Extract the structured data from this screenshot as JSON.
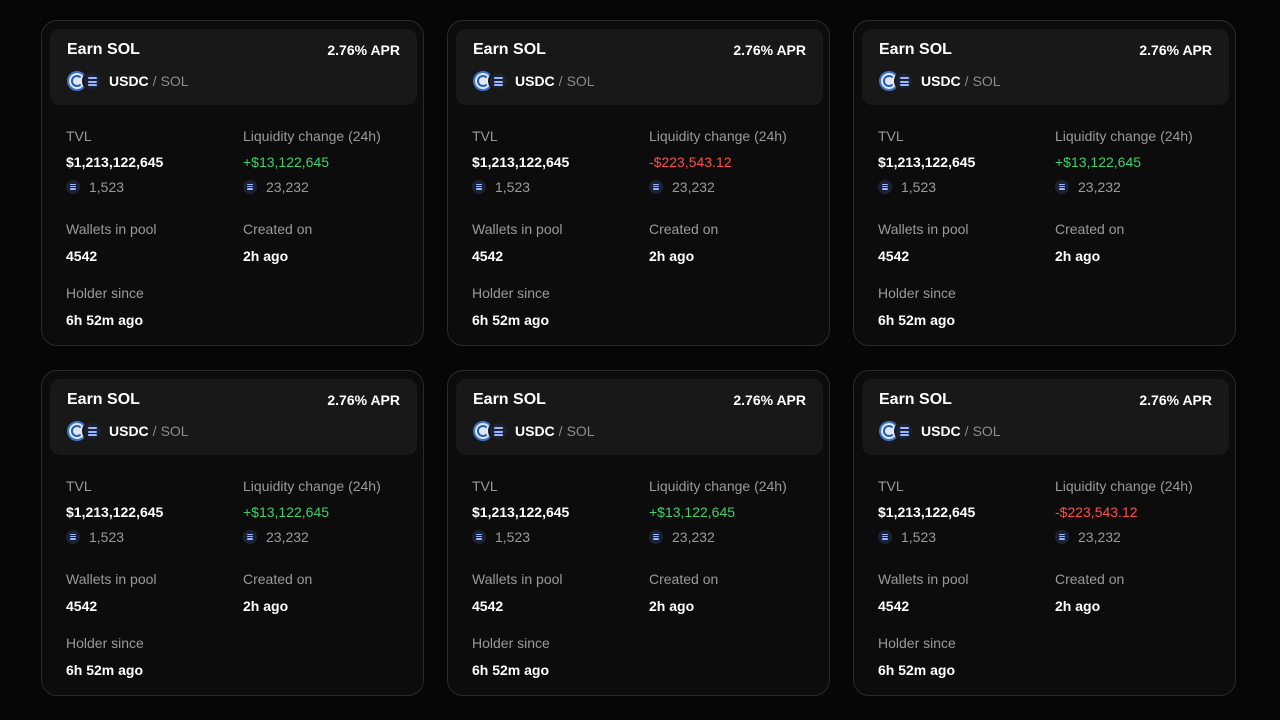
{
  "cards": [
    {
      "title": "Earn SOL",
      "apr": "2.76% APR",
      "pair_base": "USDC",
      "pair_sep": "/",
      "pair_quote": "SOL",
      "tvl_label": "TVL",
      "tvl_value": "$1,213,122,645",
      "tvl_sol": "1,523",
      "liq_label": "Liquidity change (24h)",
      "liq_value": "+$13,122,645",
      "liq_direction": "positive",
      "liq_sol": "23,232",
      "wallets_label": "Wallets in pool",
      "wallets_value": "4542",
      "created_label": "Created on",
      "created_value": "2h ago",
      "holder_label": "Holder since",
      "holder_value": "6h 52m ago"
    },
    {
      "title": "Earn SOL",
      "apr": "2.76% APR",
      "pair_base": "USDC",
      "pair_sep": "/",
      "pair_quote": "SOL",
      "tvl_label": "TVL",
      "tvl_value": "$1,213,122,645",
      "tvl_sol": "1,523",
      "liq_label": "Liquidity change (24h)",
      "liq_value": "-$223,543.12",
      "liq_direction": "negative",
      "liq_sol": "23,232",
      "wallets_label": "Wallets in pool",
      "wallets_value": "4542",
      "created_label": "Created on",
      "created_value": "2h ago",
      "holder_label": "Holder since",
      "holder_value": "6h 52m ago"
    },
    {
      "title": "Earn SOL",
      "apr": "2.76% APR",
      "pair_base": "USDC",
      "pair_sep": "/",
      "pair_quote": "SOL",
      "tvl_label": "TVL",
      "tvl_value": "$1,213,122,645",
      "tvl_sol": "1,523",
      "liq_label": "Liquidity change (24h)",
      "liq_value": "+$13,122,645",
      "liq_direction": "positive",
      "liq_sol": "23,232",
      "wallets_label": "Wallets in pool",
      "wallets_value": "4542",
      "created_label": "Created on",
      "created_value": "2h ago",
      "holder_label": "Holder since",
      "holder_value": "6h 52m ago"
    },
    {
      "title": "Earn SOL",
      "apr": "2.76% APR",
      "pair_base": "USDC",
      "pair_sep": "/",
      "pair_quote": "SOL",
      "tvl_label": "TVL",
      "tvl_value": "$1,213,122,645",
      "tvl_sol": "1,523",
      "liq_label": "Liquidity change (24h)",
      "liq_value": "+$13,122,645",
      "liq_direction": "positive",
      "liq_sol": "23,232",
      "wallets_label": "Wallets in pool",
      "wallets_value": "4542",
      "created_label": "Created on",
      "created_value": "2h ago",
      "holder_label": "Holder since",
      "holder_value": "6h 52m ago"
    },
    {
      "title": "Earn SOL",
      "apr": "2.76% APR",
      "pair_base": "USDC",
      "pair_sep": "/",
      "pair_quote": "SOL",
      "tvl_label": "TVL",
      "tvl_value": "$1,213,122,645",
      "tvl_sol": "1,523",
      "liq_label": "Liquidity change (24h)",
      "liq_value": "+$13,122,645",
      "liq_direction": "positive",
      "liq_sol": "23,232",
      "wallets_label": "Wallets in pool",
      "wallets_value": "4542",
      "created_label": "Created on",
      "created_value": "2h ago",
      "holder_label": "Holder since",
      "holder_value": "6h 52m ago"
    },
    {
      "title": "Earn SOL",
      "apr": "2.76% APR",
      "pair_base": "USDC",
      "pair_sep": "/",
      "pair_quote": "SOL",
      "tvl_label": "TVL",
      "tvl_value": "$1,213,122,645",
      "tvl_sol": "1,523",
      "liq_label": "Liquidity change (24h)",
      "liq_value": "-$223,543.12",
      "liq_direction": "negative",
      "liq_sol": "23,232",
      "wallets_label": "Wallets in pool",
      "wallets_value": "4542",
      "created_label": "Created on",
      "created_value": "2h ago",
      "holder_label": "Holder since",
      "holder_value": "6h 52m ago"
    }
  ],
  "icons": {
    "base_token": "usdc-token-icon",
    "quote_token": "sol-token-icon"
  },
  "colors": {
    "positive": "#3fcf6c",
    "negative": "#ff4d4d",
    "background": "#060606",
    "card": "#0c0c0c",
    "card_header": "#181818"
  }
}
